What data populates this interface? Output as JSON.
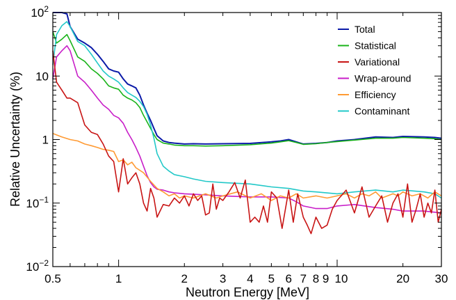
{
  "chart_data": {
    "type": "line",
    "xlabel": "Neutron Energy [MeV]",
    "ylabel": "Relative Uncertainty (%)",
    "x_scale": "log",
    "y_scale": "log",
    "xlim": [
      0.5,
      30
    ],
    "ylim": [
      0.01,
      100
    ],
    "x_ticks": [
      {
        "v": 0.5,
        "label": "0.5"
      },
      {
        "v": 1,
        "label": "1"
      },
      {
        "v": 2,
        "label": "2"
      },
      {
        "v": 3,
        "label": "3"
      },
      {
        "v": 4,
        "label": "4"
      },
      {
        "v": 5,
        "label": "5"
      },
      {
        "v": 6,
        "label": "6"
      },
      {
        "v": 7,
        "label": "7"
      },
      {
        "v": 8,
        "label": "8"
      },
      {
        "v": 9,
        "label": "9"
      },
      {
        "v": 10,
        "label": "10"
      },
      {
        "v": 20,
        "label": "20"
      },
      {
        "v": 30,
        "label": "30"
      }
    ],
    "y_ticks": [
      {
        "v": 0.01,
        "base": "10",
        "exp": "−2"
      },
      {
        "v": 0.1,
        "base": "10",
        "exp": "−1"
      },
      {
        "v": 1,
        "base": "1",
        "exp": ""
      },
      {
        "v": 10,
        "base": "10",
        "exp": ""
      },
      {
        "v": 100,
        "base": "10",
        "exp": "2"
      }
    ],
    "grid": false,
    "legend_position": "top-right",
    "series": [
      {
        "name": "Total",
        "color": "#0a1aa8",
        "width": 2.0,
        "x": [
          0.5,
          0.52,
          0.55,
          0.58,
          0.6,
          0.65,
          0.7,
          0.75,
          0.8,
          0.85,
          0.9,
          0.95,
          1.0,
          1.05,
          1.1,
          1.15,
          1.2,
          1.25,
          1.3,
          1.35,
          1.4,
          1.45,
          1.5,
          1.6,
          1.7,
          1.8,
          2.0,
          2.2,
          2.5,
          3,
          4,
          5,
          5.5,
          6,
          6.5,
          7,
          8,
          9,
          10,
          12,
          15,
          18,
          20,
          25,
          28,
          30
        ],
        "y": [
          100,
          100,
          100,
          95,
          60,
          38,
          33,
          28,
          22,
          17,
          13,
          12,
          11.5,
          9,
          7.5,
          7,
          6.5,
          5,
          3.5,
          2.6,
          2.0,
          1.5,
          1.15,
          0.95,
          0.9,
          0.88,
          0.85,
          0.86,
          0.85,
          0.86,
          0.87,
          0.92,
          0.95,
          1.0,
          0.92,
          0.85,
          0.87,
          0.9,
          0.95,
          1.0,
          1.1,
          1.08,
          1.12,
          1.1,
          1.08,
          1.05
        ]
      },
      {
        "name": "Statistical",
        "color": "#19b319",
        "width": 1.6,
        "x": [
          0.5,
          0.52,
          0.55,
          0.58,
          0.6,
          0.65,
          0.7,
          0.75,
          0.8,
          0.85,
          0.9,
          0.95,
          1.0,
          1.05,
          1.1,
          1.15,
          1.2,
          1.25,
          1.3,
          1.35,
          1.4,
          1.45,
          1.5,
          1.6,
          1.7,
          1.8,
          2.0,
          2.2,
          2.5,
          3,
          4,
          5,
          5.5,
          6,
          6.5,
          7,
          8,
          9,
          10,
          12,
          15,
          18,
          20,
          25,
          28,
          30
        ],
        "y": [
          50,
          33,
          38,
          45,
          36,
          20,
          17,
          13,
          11,
          9,
          7,
          6.5,
          6.2,
          5,
          4.5,
          4.2,
          3.8,
          3.2,
          2.4,
          1.9,
          1.5,
          1.2,
          1.0,
          0.88,
          0.85,
          0.82,
          0.8,
          0.8,
          0.79,
          0.8,
          0.83,
          0.88,
          0.92,
          0.96,
          0.9,
          0.84,
          0.86,
          0.9,
          0.93,
          0.98,
          1.05,
          1.05,
          1.08,
          1.05,
          1.03,
          1.0
        ]
      },
      {
        "name": "Contaminant",
        "color": "#22c8c8",
        "width": 1.6,
        "x": [
          0.5,
          0.52,
          0.55,
          0.58,
          0.6,
          0.65,
          0.7,
          0.75,
          0.8,
          0.85,
          0.9,
          0.95,
          1.0,
          1.05,
          1.1,
          1.15,
          1.2,
          1.25,
          1.3,
          1.35,
          1.4,
          1.45,
          1.5,
          1.6,
          1.7,
          1.8,
          2.0,
          2.2,
          2.5,
          3,
          4,
          5,
          6,
          7,
          8,
          10,
          12,
          15,
          18,
          20,
          25,
          28,
          30
        ],
        "y": [
          15,
          45,
          62,
          72,
          60,
          35,
          30,
          22,
          16,
          12,
          10,
          9,
          8,
          6.5,
          5.5,
          5,
          4.6,
          4,
          3.3,
          2.5,
          1.7,
          1.05,
          0.6,
          0.38,
          0.32,
          0.28,
          0.26,
          0.24,
          0.22,
          0.21,
          0.2,
          0.18,
          0.17,
          0.155,
          0.15,
          0.14,
          0.15,
          0.16,
          0.15,
          0.16,
          0.15,
          0.14,
          0.12
        ]
      },
      {
        "name": "Wrap-around",
        "color": "#c81ec8",
        "width": 1.6,
        "x": [
          0.5,
          0.52,
          0.55,
          0.58,
          0.6,
          0.65,
          0.7,
          0.75,
          0.8,
          0.85,
          0.9,
          0.95,
          1.0,
          1.05,
          1.1,
          1.15,
          1.2,
          1.25,
          1.3,
          1.35,
          1.4,
          1.45,
          1.5,
          1.6,
          1.7,
          1.8,
          2.0,
          2.5,
          3,
          4,
          5,
          6,
          6.5,
          7,
          8,
          9,
          10,
          12,
          15,
          18,
          20,
          25,
          30
        ],
        "y": [
          9,
          20,
          25,
          30,
          25,
          10,
          8,
          6,
          4.5,
          3.5,
          3,
          2.4,
          2.2,
          1.8,
          1.3,
          1.0,
          0.75,
          0.55,
          0.38,
          0.27,
          0.21,
          0.18,
          0.165,
          0.16,
          0.15,
          0.145,
          0.14,
          0.135,
          0.13,
          0.125,
          0.125,
          0.12,
          0.105,
          0.09,
          0.082,
          0.082,
          0.09,
          0.095,
          0.085,
          0.08,
          0.075,
          0.075,
          0.07
        ]
      },
      {
        "name": "Efficiency",
        "color": "#ff9a33",
        "width": 1.6,
        "x": [
          0.5,
          0.55,
          0.6,
          0.65,
          0.7,
          0.75,
          0.8,
          0.85,
          0.9,
          0.95,
          1.0,
          1.05,
          1.1,
          1.15,
          1.2,
          1.3,
          1.4,
          1.5,
          1.6,
          1.7,
          1.8,
          1.9,
          2.0,
          2.2,
          2.5,
          2.8,
          3,
          3.5,
          4,
          4.5,
          5,
          5.5,
          6,
          6.5,
          7,
          8,
          9,
          10,
          11,
          12,
          13,
          14,
          15,
          16,
          17,
          18,
          19,
          20,
          22,
          24,
          26,
          28,
          30
        ],
        "y": [
          1.25,
          1.1,
          1.0,
          0.95,
          0.85,
          0.8,
          0.75,
          0.7,
          0.68,
          0.65,
          0.45,
          0.48,
          0.4,
          0.44,
          0.36,
          0.3,
          0.22,
          0.17,
          0.15,
          0.13,
          0.14,
          0.12,
          0.13,
          0.12,
          0.14,
          0.12,
          0.13,
          0.15,
          0.12,
          0.14,
          0.11,
          0.13,
          0.12,
          0.14,
          0.12,
          0.13,
          0.12,
          0.13,
          0.14,
          0.12,
          0.14,
          0.13,
          0.15,
          0.12,
          0.13,
          0.14,
          0.13,
          0.15,
          0.13,
          0.14,
          0.12,
          0.15,
          0.13
        ]
      },
      {
        "name": "Variational",
        "color": "#c81414",
        "width": 1.6,
        "x": [
          0.5,
          0.52,
          0.55,
          0.58,
          0.6,
          0.65,
          0.7,
          0.75,
          0.8,
          0.85,
          0.9,
          0.95,
          1.0,
          1.05,
          1.1,
          1.15,
          1.2,
          1.25,
          1.3,
          1.35,
          1.4,
          1.45,
          1.5,
          1.6,
          1.7,
          1.8,
          1.9,
          2.0,
          2.1,
          2.2,
          2.3,
          2.4,
          2.5,
          2.6,
          2.7,
          2.8,
          2.9,
          3.0,
          3.2,
          3.4,
          3.6,
          3.8,
          4.0,
          4.2,
          4.4,
          4.6,
          4.8,
          5.0,
          5.3,
          5.6,
          6.0,
          6.3,
          6.6,
          7.0,
          7.3,
          7.6,
          8.0,
          8.5,
          9,
          9.5,
          10,
          11,
          12,
          13,
          14,
          15,
          16,
          17,
          18,
          19,
          20,
          21,
          22,
          23,
          24,
          25,
          26,
          27,
          28,
          29,
          30
        ],
        "y": [
          25,
          8,
          6,
          4.5,
          4.5,
          3.8,
          1.7,
          1.3,
          1.2,
          0.85,
          0.55,
          0.45,
          0.15,
          0.5,
          0.2,
          0.25,
          0.3,
          0.2,
          0.1,
          0.075,
          0.17,
          0.12,
          0.06,
          0.095,
          0.09,
          0.12,
          0.1,
          0.13,
          0.09,
          0.14,
          0.11,
          0.13,
          0.065,
          0.07,
          0.2,
          0.08,
          0.12,
          0.11,
          0.15,
          0.21,
          0.12,
          0.23,
          0.05,
          0.06,
          0.05,
          0.09,
          0.05,
          0.15,
          0.12,
          0.04,
          0.16,
          0.05,
          0.14,
          0.06,
          0.045,
          0.033,
          0.06,
          0.04,
          0.045,
          0.08,
          0.11,
          0.16,
          0.07,
          0.18,
          0.06,
          0.09,
          0.13,
          0.05,
          0.1,
          0.14,
          0.06,
          0.2,
          0.05,
          0.08,
          0.14,
          0.06,
          0.1,
          0.07,
          0.16,
          0.05,
          0.08
        ]
      }
    ],
    "legend_order": [
      "Total",
      "Statistical",
      "Variational",
      "Wrap-around",
      "Efficiency",
      "Contaminant"
    ]
  }
}
